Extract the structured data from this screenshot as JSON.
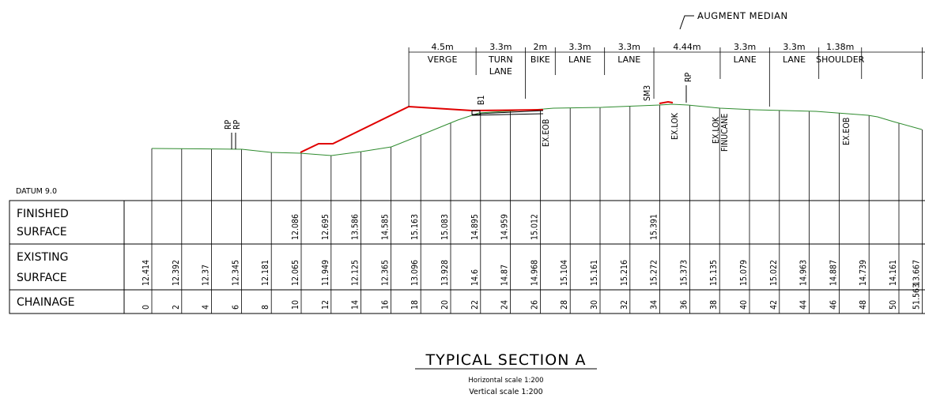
{
  "datum_label": "DATUM 9.0",
  "rows": {
    "finished": [
      "FINISHED",
      "SURFACE"
    ],
    "existing": [
      "EXISTING",
      "SURFACE"
    ],
    "chainage": "CHAINAGE"
  },
  "chainages": [
    "0",
    "2",
    "4",
    "6",
    "8",
    "10",
    "12",
    "14",
    "16",
    "18",
    "20",
    "22",
    "24",
    "26",
    "28",
    "30",
    "32",
    "34",
    "36",
    "38",
    "40",
    "42",
    "44",
    "46",
    "48",
    "50",
    "51.563"
  ],
  "existing_levels": [
    "12.414",
    "12.392",
    "12.37",
    "12.345",
    "12.181",
    "12.065",
    "11.949",
    "12.125",
    "12.365",
    "13.096",
    "13.928",
    "14.6",
    "14.87",
    "14.968",
    "15.104",
    "15.161",
    "15.216",
    "15.272",
    "15.373",
    "15.135",
    "15.079",
    "15.022",
    "14.963",
    "14.887",
    "14.739",
    "14.161",
    "13.667"
  ],
  "finished_levels": [
    {
      "chainage": 10,
      "value": "12.086"
    },
    {
      "chainage": 12,
      "value": "12.695"
    },
    {
      "chainage": 14,
      "value": "13.586"
    },
    {
      "chainage": 16,
      "value": "14.585"
    },
    {
      "chainage": 18,
      "value": "15.163"
    },
    {
      "chainage": 20,
      "value": "15.083"
    },
    {
      "chainage": 22,
      "value": "14.895"
    },
    {
      "chainage": 24,
      "value": "14.959"
    },
    {
      "chainage": 26,
      "value": "15.012"
    },
    {
      "chainage": 34,
      "value": "15.391"
    }
  ],
  "widths": [
    "4.5m",
    "3.3m",
    "2m",
    "3.3m",
    "3.3m",
    "4.44m",
    "3.3m",
    "3.3m",
    "1.38m"
  ],
  "lane_names": [
    [
      "VERGE"
    ],
    [
      "TURN",
      "LANE"
    ],
    [
      "BIKE"
    ],
    [
      "LANE"
    ],
    [
      "LANE"
    ],
    [],
    [
      "LANE"
    ],
    [
      "LANE"
    ],
    [
      "SHOULDER"
    ]
  ],
  "augment_label": "AUGMENT MEDIAN",
  "markers": {
    "rp_left": "RP",
    "rp_right": "RP",
    "b1": "B1",
    "sm3": "SM3",
    "ex_eob_1": "EX.EOB",
    "ex_lok_1": "EX.LOK",
    "ex_lok_2": "EX.LOK",
    "finucane": "FINUCANE",
    "ex_eob_2": "EX.EOB"
  },
  "title": "TYPICAL SECTION A",
  "horizontal_scale": "Horizontal scale 1:200",
  "vertical_scale": "Vertical scale 1:200",
  "colors": {
    "existing": "#2e8b2e",
    "design": "#e00000",
    "lines": "#000000"
  }
}
